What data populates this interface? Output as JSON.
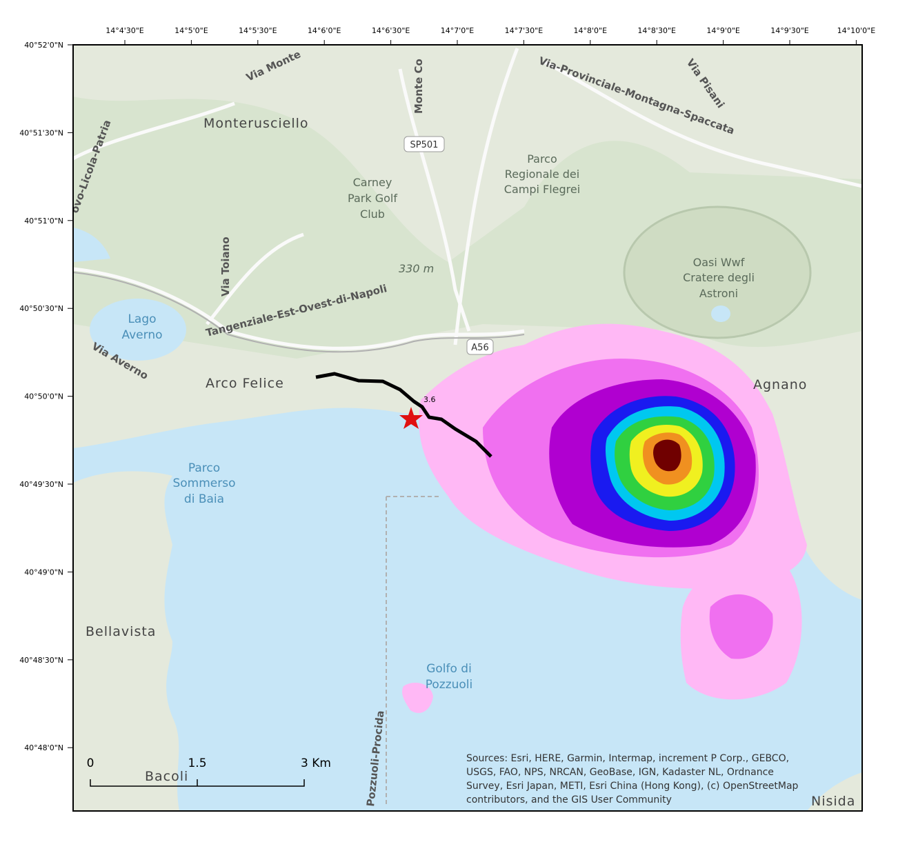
{
  "longitude_ticks": [
    "14°4'30\"E",
    "14°5'0\"E",
    "14°5'30\"E",
    "14°6'0\"E",
    "14°6'30\"E",
    "14°7'0\"E",
    "14°7'30\"E",
    "14°8'0\"E",
    "14°8'30\"E",
    "14°9'0\"E",
    "14°9'30\"E",
    "14°10'0\"E"
  ],
  "latitude_ticks": [
    "40°52'0\"N",
    "40°51'30\"N",
    "40°51'0\"N",
    "40°50'30\"N",
    "40°50'0\"N",
    "40°49'30\"N",
    "40°49'0\"N",
    "40°48'30\"N",
    "40°48'0\"N"
  ],
  "places": {
    "monterusciello": "Monterusciello",
    "carney_park": [
      "Carney",
      "Park Golf",
      "Club"
    ],
    "parco_regionale": [
      "Parco",
      "Regionale dei",
      "Campi Flegrei"
    ],
    "astroni": [
      "Oasi Wwf",
      "Cratere degli",
      "Astroni"
    ],
    "lago_averno": [
      "Lago",
      "Averno"
    ],
    "arco_felice": "Arco Felice",
    "agnano": "Agnano",
    "parco_sommerso": [
      "Parco",
      "Sommerso",
      "di Baia"
    ],
    "bellavista": "Bellavista",
    "golfo": [
      "Golfo di",
      "Pozzuoli"
    ],
    "bacoli": "Bacoli",
    "nisida": "Nisida",
    "elevation": "330 m"
  },
  "roads": {
    "montagna_spaccata": "Via-Provinciale-Montagna-Spaccata",
    "tangenziale": "Tangenziale-Est-Ovest-di-Napoli",
    "sp501": "SP501",
    "a56": "A56",
    "via_toiano": "Via Toiano",
    "via_averno": "Via Averno",
    "via_pisani": "Via Pisani",
    "via_monte": "Via Monte",
    "monte_co": "Monte Co",
    "licola": "ovo-Licola-Patria",
    "procida": "Pozzuoli-Procida"
  },
  "annotation": "3.6",
  "scale_bar": [
    "0",
    "1.5",
    "3 Km"
  ],
  "attribution": [
    "Sources: Esri, HERE, Garmin, Intermap, increment P Corp., GEBCO,",
    "USGS, FAO, NPS, NRCAN, GeoBase, IGN, Kadaster NL, Ordnance",
    "Survey, Esri Japan, METI, Esri China (Hong Kong), (c) OpenStreetMap",
    "contributors, and the GIS User Community"
  ]
}
